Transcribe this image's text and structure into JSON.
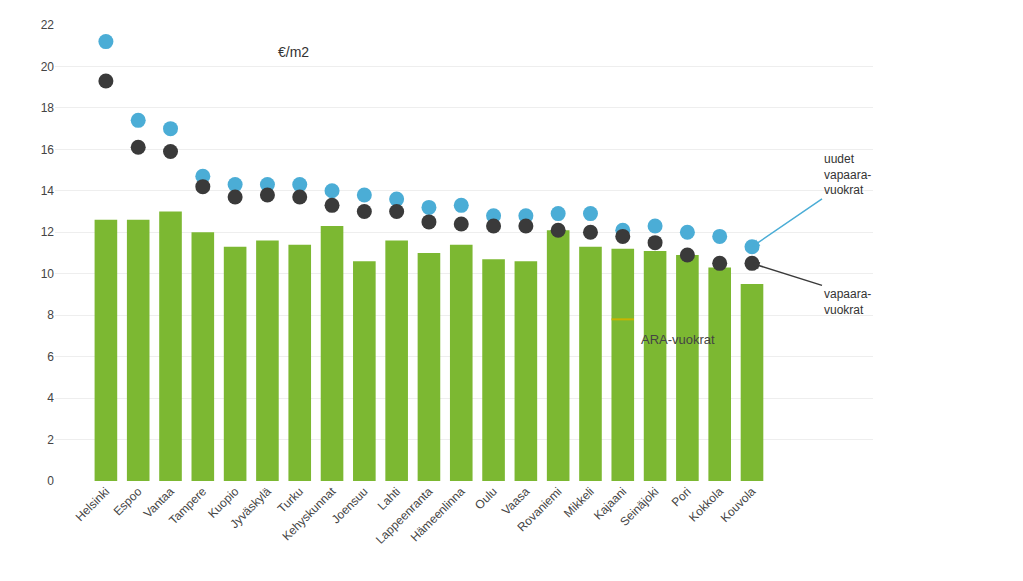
{
  "chart_data": {
    "type": "bar",
    "categories": [
      "Helsinki",
      "Espoo",
      "Vantaa",
      "Tampere",
      "Kuopio",
      "Jyväskylä",
      "Turku",
      "Kehyskunnat",
      "Joensuu",
      "Lahti",
      "Lappeenranta",
      "Hämeenlinna",
      "Oulu",
      "Vaasa",
      "Rovaniemi",
      "Mikkeli",
      "Kajaani",
      "Seinäjoki",
      "Pori",
      "Kokkola",
      "Kouvola"
    ],
    "series": [
      {
        "name": "ARA-vuokrat",
        "type": "bar",
        "color": "#7cb832",
        "values": [
          12.6,
          12.6,
          13.0,
          12.0,
          11.3,
          11.6,
          11.4,
          12.3,
          10.6,
          11.6,
          11.0,
          11.4,
          10.7,
          10.6,
          12.1,
          11.3,
          11.2,
          11.1,
          10.9,
          10.3,
          9.5
        ]
      },
      {
        "name": "vapaara-\nvuokrat",
        "type": "scatter",
        "marker": "circle",
        "color": "#3a3a3a",
        "values": [
          19.3,
          16.1,
          15.9,
          14.2,
          13.7,
          13.8,
          13.7,
          13.3,
          13.0,
          13.0,
          12.5,
          12.4,
          12.3,
          12.3,
          12.1,
          12.0,
          11.8,
          11.5,
          10.9,
          10.5,
          10.5
        ]
      },
      {
        "name": "uudet\nvapaara-\nvuokrat",
        "type": "scatter",
        "marker": "circle",
        "color": "#4badd6",
        "values": [
          21.2,
          17.4,
          17.0,
          14.7,
          14.3,
          14.3,
          14.3,
          14.0,
          13.8,
          13.6,
          13.2,
          13.3,
          12.8,
          12.8,
          12.9,
          12.9,
          12.1,
          12.3,
          12.0,
          11.8,
          11.3
        ]
      },
      {
        "type": "scatter",
        "marker": "dash",
        "color": "#c8b400",
        "values": [
          null,
          null,
          null,
          null,
          null,
          null,
          null,
          null,
          null,
          null,
          null,
          null,
          null,
          null,
          null,
          null,
          7.8,
          null,
          null,
          null,
          null
        ]
      }
    ],
    "annotations": [
      "€/m2"
    ],
    "ylim": [
      0,
      22
    ],
    "yticks": [
      0,
      2,
      4,
      6,
      8,
      10,
      12,
      14,
      16,
      18,
      20,
      22
    ],
    "grid": true
  }
}
